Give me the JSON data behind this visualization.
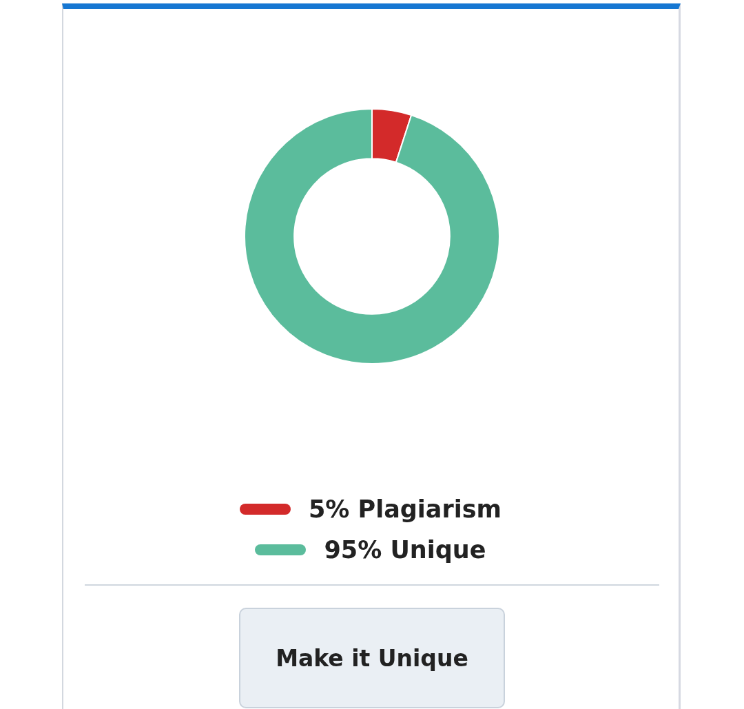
{
  "chart_data": {
    "type": "donut",
    "categories": [
      "5% Plagiarism",
      "95% Unique"
    ],
    "values": [
      5,
      95
    ],
    "colors": [
      "#d32a2a",
      "#5bbc9c"
    ],
    "legend": "bottom",
    "annotations": [
      "Make it Unique"
    ]
  }
}
